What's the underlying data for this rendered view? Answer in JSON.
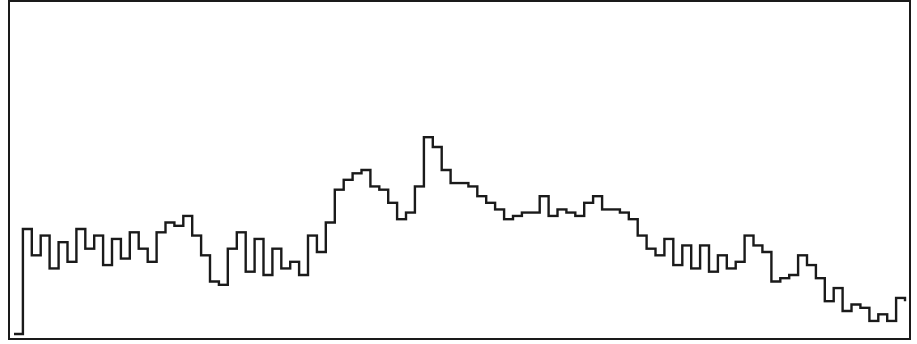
{
  "chart_data": {
    "type": "line",
    "title": "",
    "xlabel": "",
    "ylabel": "",
    "grid": false,
    "legend": "none",
    "xlim": [
      0,
      100
    ],
    "ylim": [
      0,
      100
    ],
    "line_style": "step",
    "colors": {
      "line": "#1a1a1a",
      "frame": "#1a1a1a",
      "background": "#ffffff"
    },
    "series": [
      {
        "x": [
          0,
          1,
          2,
          3,
          4,
          5,
          6,
          7,
          8,
          9,
          10,
          11,
          12,
          13,
          14,
          15,
          16,
          17,
          18,
          19,
          20,
          21,
          22,
          23,
          24,
          25,
          26,
          27,
          28,
          29,
          30,
          31,
          32,
          33,
          34,
          35,
          36,
          37,
          38,
          39,
          40,
          41,
          42,
          43,
          44,
          45,
          46,
          47,
          48,
          49,
          50,
          51,
          52,
          53,
          54,
          55,
          56,
          57,
          58,
          59,
          60,
          61,
          62,
          63,
          64,
          65,
          66,
          67,
          68,
          69,
          70,
          71,
          72,
          73,
          74,
          75,
          76,
          77,
          78,
          79,
          80,
          81,
          82,
          83,
          84,
          85,
          86,
          87,
          88,
          89,
          90,
          91,
          92,
          93,
          94,
          95,
          96,
          97,
          98,
          99,
          100
        ],
        "values": [
          0,
          32,
          24,
          30,
          20,
          28,
          22,
          32,
          26,
          30,
          21,
          29,
          23,
          31,
          26,
          22,
          31,
          34,
          33,
          36,
          30,
          24,
          16,
          15,
          26,
          31,
          19,
          29,
          18,
          26,
          20,
          22,
          18,
          30,
          25,
          34,
          44,
          47,
          49,
          50,
          45,
          44,
          40,
          35,
          37,
          45,
          60,
          57,
          50,
          46,
          46,
          45,
          42,
          40,
          38,
          35,
          36,
          37,
          37,
          42,
          36,
          38,
          37,
          36,
          40,
          42,
          38,
          38,
          37,
          35,
          30,
          26,
          24,
          29,
          21,
          27,
          20,
          27,
          19,
          24,
          20,
          22,
          30,
          27,
          25,
          16,
          17,
          18,
          24,
          21,
          17,
          10,
          14,
          7,
          9,
          8,
          4,
          6,
          4,
          11,
          10
        ]
      }
    ]
  }
}
